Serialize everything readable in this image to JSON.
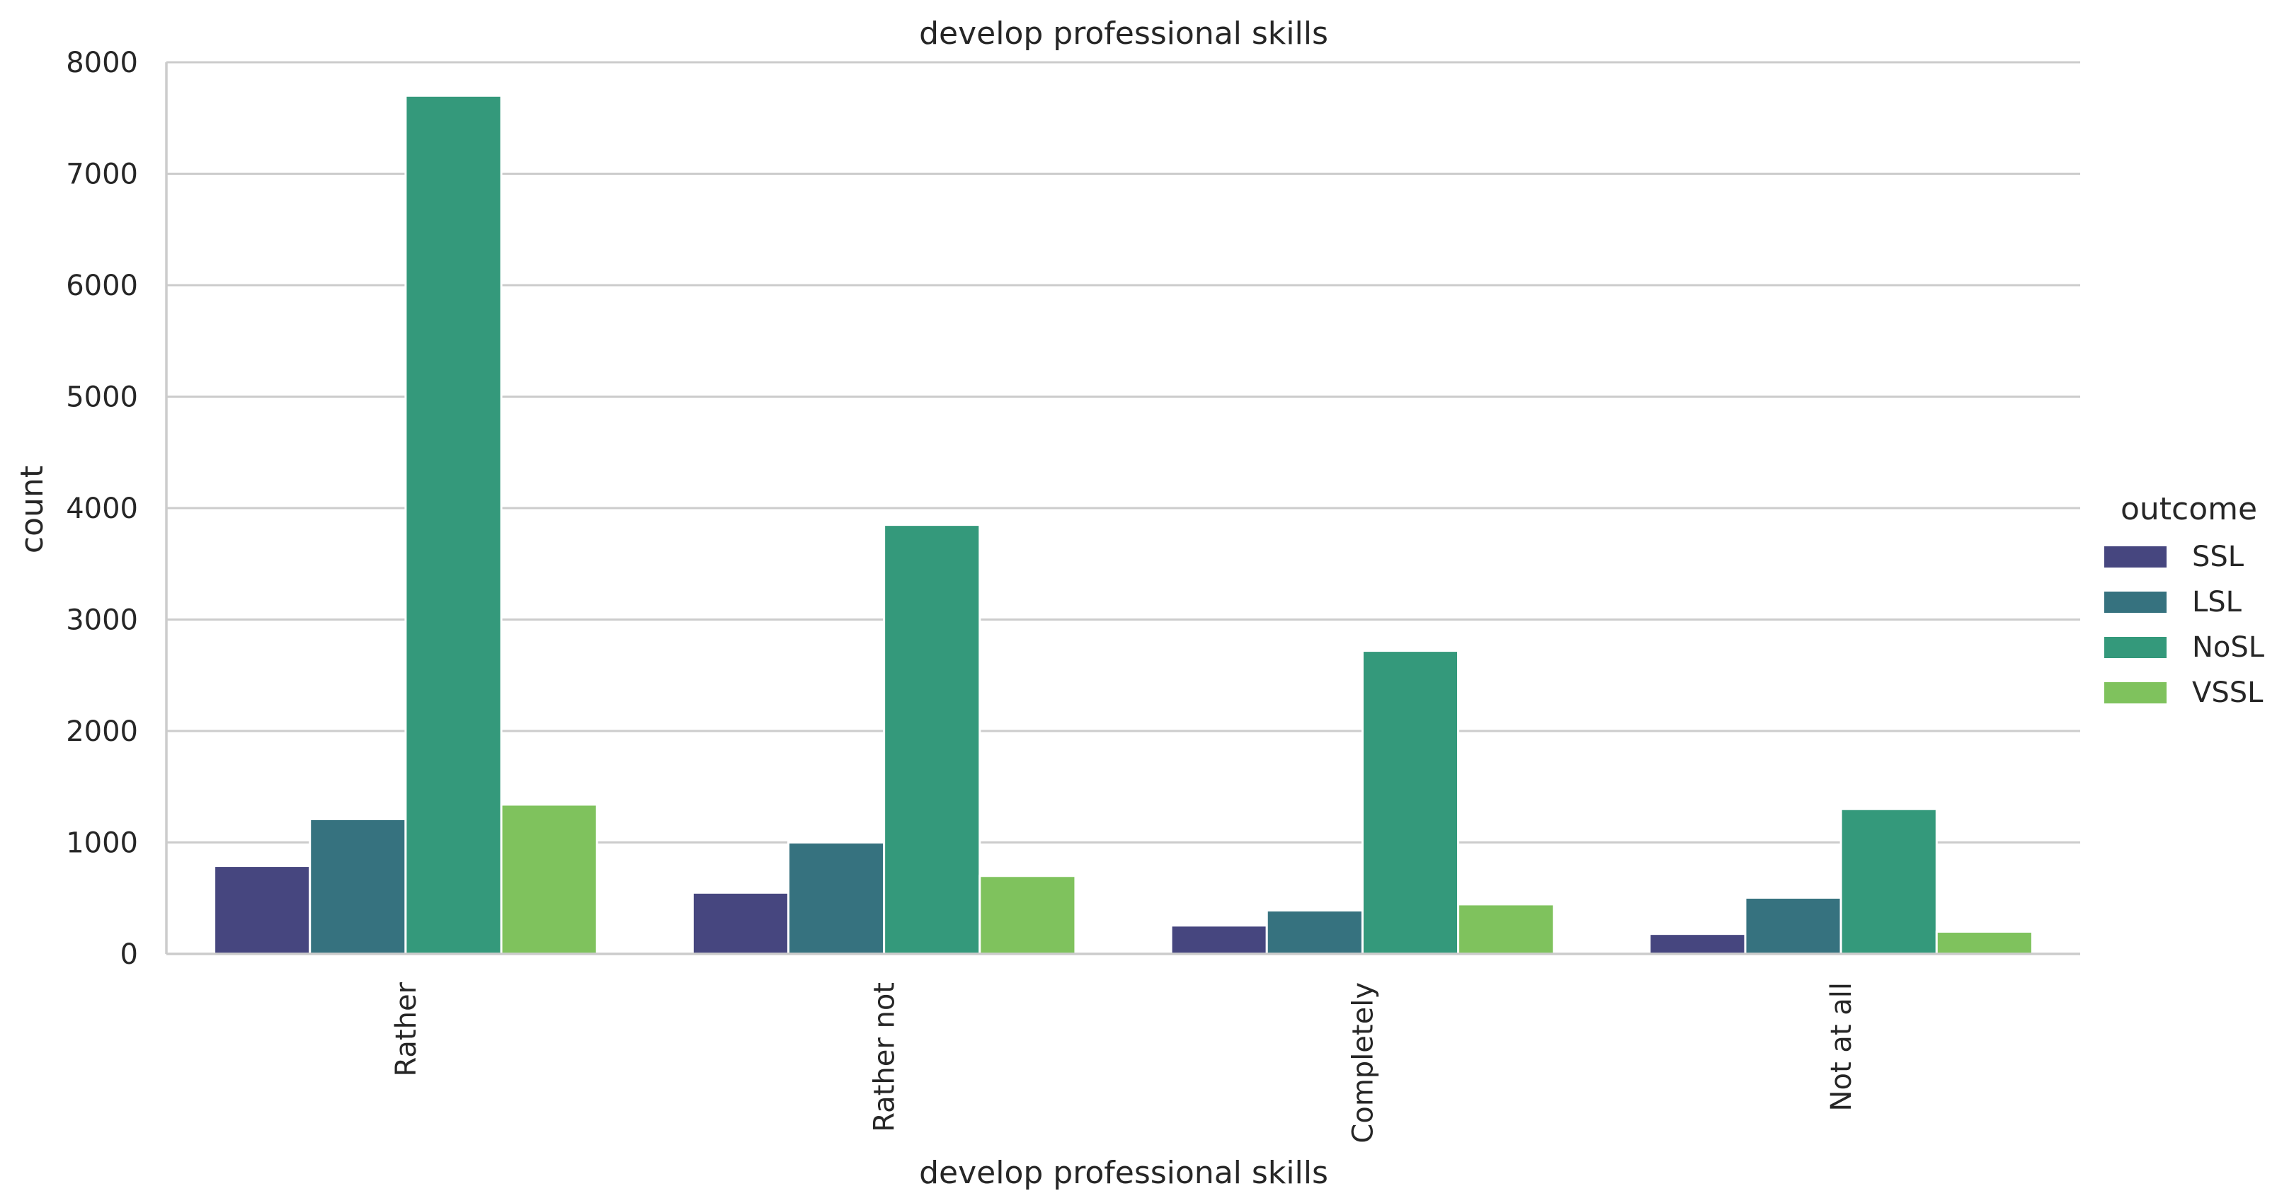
{
  "chart_data": {
    "type": "bar",
    "title": "develop professional skills",
    "xlabel": "develop professional skills",
    "ylabel": "count",
    "categories": [
      "Rather",
      "Rather not",
      "Completely",
      "Not at all"
    ],
    "series": [
      {
        "name": "SSL",
        "color": "#46467f",
        "values": [
          790,
          550,
          255,
          180
        ]
      },
      {
        "name": "LSL",
        "color": "#36727f",
        "values": [
          1210,
          1000,
          390,
          505
        ]
      },
      {
        "name": "NoSL",
        "color": "#34997b",
        "values": [
          7700,
          3850,
          2720,
          1300
        ]
      },
      {
        "name": "VSSL",
        "color": "#7fc25d",
        "values": [
          1340,
          700,
          445,
          200
        ]
      }
    ],
    "ylim": [
      0,
      8000
    ],
    "yticks": [
      0,
      1000,
      2000,
      3000,
      4000,
      5000,
      6000,
      7000,
      8000
    ],
    "grid": true,
    "legend": {
      "title": "outcome",
      "placement": "right"
    }
  }
}
